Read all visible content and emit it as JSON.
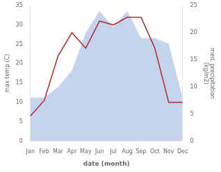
{
  "chart_data": {
    "type": "line",
    "categories": [
      "Jan",
      "Feb",
      "Mar",
      "Apr",
      "May",
      "Jun",
      "Jul",
      "Aug",
      "Sep",
      "Oct",
      "Nov",
      "Dec"
    ],
    "xlabel": "date (month)",
    "ylabel": "max temp (C)",
    "y2label": "med. precipitation\n(kg/m2)",
    "series": [
      {
        "type": "area",
        "axis": "y2",
        "color": "#b0c4e8",
        "values": [
          8,
          8,
          10,
          13,
          20,
          24,
          21,
          24,
          19,
          19,
          18,
          8
        ]
      },
      {
        "type": "line",
        "color": "#b03030",
        "values": [
          6.5,
          10.5,
          22.0,
          28.0,
          24.0,
          31.0,
          30.0,
          32.0,
          32.0,
          24.0,
          10.0,
          10.0
        ]
      }
    ],
    "ylim": [
      0,
      35
    ],
    "yticks": [
      0,
      5,
      10,
      15,
      20,
      25,
      30,
      35
    ],
    "y2lim": [
      0,
      25
    ],
    "y2ticks": [
      0,
      5,
      10,
      15,
      20,
      25
    ],
    "grid": false
  }
}
